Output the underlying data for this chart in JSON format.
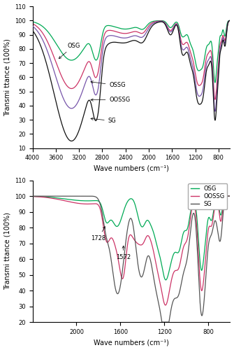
{
  "top_plot": {
    "xlim": [
      4000,
      600
    ],
    "ylim": [
      10,
      110
    ],
    "yticks": [
      10,
      20,
      30,
      40,
      50,
      60,
      70,
      80,
      90,
      100,
      110
    ],
    "xticks": [
      4000,
      3600,
      3200,
      2800,
      2400,
      2000,
      1600,
      1200,
      800
    ],
    "xlabel": "Wave numbers (cm⁻¹)",
    "ylabel": "Transmi ttance (100%)",
    "colors": {
      "OSG": "#00aa55",
      "OSSG": "#cc3366",
      "OOSSG": "#7755aa",
      "SG": "#111111"
    }
  },
  "bottom_plot": {
    "xlim": [
      2400,
      600
    ],
    "ylim": [
      20,
      110
    ],
    "yticks": [
      20,
      30,
      40,
      50,
      60,
      70,
      80,
      90,
      100,
      110
    ],
    "xticks": [
      2000,
      1600,
      1200,
      800
    ],
    "xlabel": "Wave numbers (cm⁻¹)",
    "ylabel": "Transmi ttance (100%)",
    "colors": {
      "OSG": "#00aa55",
      "OOSSG": "#cc3366",
      "SG": "#555555"
    }
  }
}
